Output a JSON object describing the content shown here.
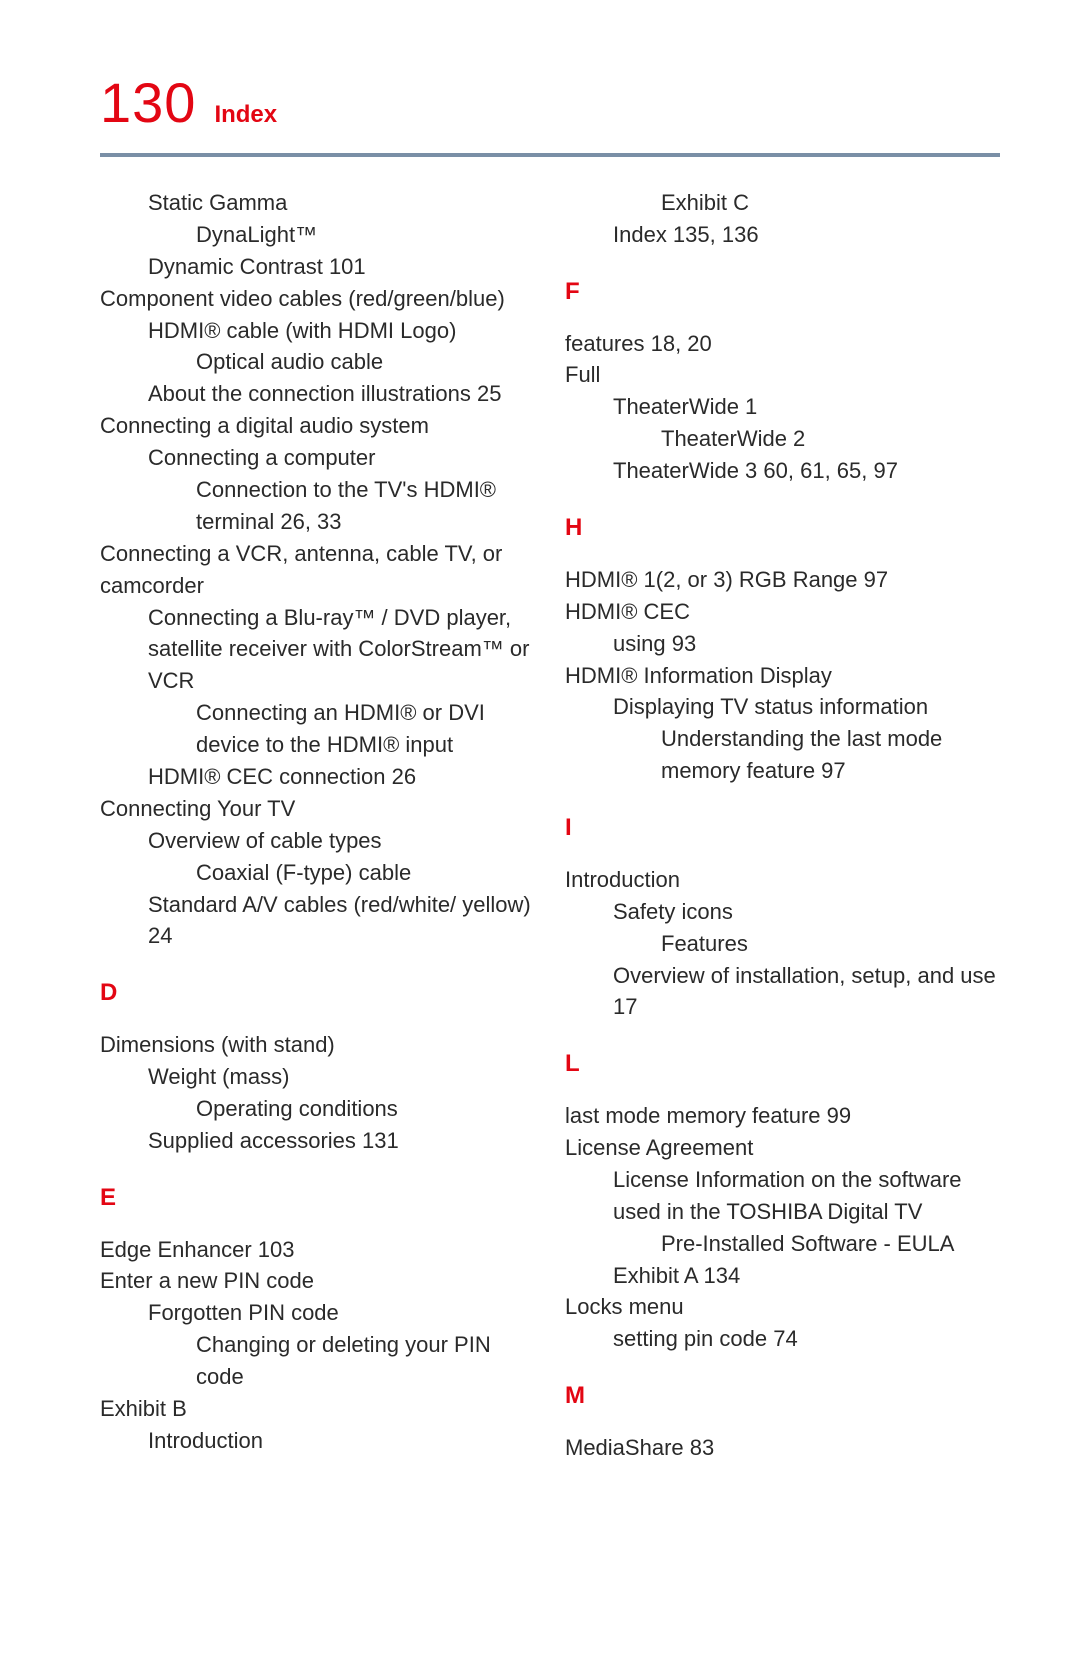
{
  "header": {
    "page_number": "130",
    "title": "Index"
  },
  "colors": {
    "accent": "#e30613",
    "rule": "#7a8fa6",
    "text": "#2a2a2a",
    "background": "#ffffff"
  },
  "left_column": {
    "pre_entries": [
      {
        "indent": 1,
        "text": "Static Gamma"
      },
      {
        "indent": 2,
        "text": "DynaLight™"
      },
      {
        "indent": 1,
        "text": "Dynamic Contrast  101"
      },
      {
        "indent": 0,
        "text": "Component video cables (red/green/blue)"
      },
      {
        "indent": 1,
        "text": "HDMI® cable (with HDMI Logo)"
      },
      {
        "indent": 2,
        "text": "Optical audio cable"
      },
      {
        "indent": 1,
        "text": "About the connection illustrations  25"
      },
      {
        "indent": 0,
        "text": "Connecting a digital audio system"
      },
      {
        "indent": 1,
        "text": "Connecting a computer"
      },
      {
        "indent": 2,
        "text": "Connection to the TV's HDMI® terminal  26, 33"
      },
      {
        "indent": 0,
        "text": "Connecting a VCR, antenna, cable TV, or camcorder"
      },
      {
        "indent": 1,
        "text": "Connecting a Blu-ray™ / DVD player, satellite receiver with ColorStream™ or VCR"
      },
      {
        "indent": 2,
        "text": "Connecting an HDMI® or DVI device to the HDMI® input"
      },
      {
        "indent": 1,
        "text": "HDMI® CEC connection  26"
      },
      {
        "indent": 0,
        "text": "Connecting Your TV"
      },
      {
        "indent": 1,
        "text": "Overview of cable types"
      },
      {
        "indent": 2,
        "text": "Coaxial (F-type) cable"
      },
      {
        "indent": 1,
        "text": "Standard A/V cables (red/white/ yellow)  24"
      }
    ],
    "sections": [
      {
        "letter": "D",
        "entries": [
          {
            "indent": 0,
            "text": "Dimensions (with stand)"
          },
          {
            "indent": 1,
            "text": "Weight (mass)"
          },
          {
            "indent": 2,
            "text": "Operating conditions"
          },
          {
            "indent": 1,
            "text": "Supplied accessories  131"
          }
        ]
      },
      {
        "letter": "E",
        "entries": [
          {
            "indent": 0,
            "text": "Edge Enhancer  103"
          },
          {
            "indent": 0,
            "text": "Enter a new PIN code"
          },
          {
            "indent": 1,
            "text": "Forgotten PIN code"
          },
          {
            "indent": 2,
            "text": "Changing or deleting your PIN code"
          },
          {
            "indent": 0,
            "text": "Exhibit B"
          },
          {
            "indent": 1,
            "text": "Introduction"
          }
        ]
      }
    ]
  },
  "right_column": {
    "pre_entries": [
      {
        "indent": 2,
        "text": "Exhibit C"
      },
      {
        "indent": 1,
        "text": "Index  135, 136"
      }
    ],
    "sections": [
      {
        "letter": "F",
        "entries": [
          {
            "indent": 0,
            "text": "features  18, 20"
          },
          {
            "indent": 0,
            "text": "Full"
          },
          {
            "indent": 1,
            "text": "TheaterWide 1"
          },
          {
            "indent": 2,
            "text": "TheaterWide 2"
          },
          {
            "indent": 1,
            "text": "TheaterWide 3  60, 61, 65, 97"
          }
        ]
      },
      {
        "letter": "H",
        "entries": [
          {
            "indent": 0,
            "text": "HDMI® 1(2, or 3) RGB Range  97"
          },
          {
            "indent": 0,
            "text": "HDMI® CEC"
          },
          {
            "indent": 1,
            "text": "using  93"
          },
          {
            "indent": 0,
            "text": "HDMI® Information Display"
          },
          {
            "indent": 1,
            "text": "Displaying TV status information"
          },
          {
            "indent": 2,
            "text": "Understanding the last mode memory feature  97"
          }
        ]
      },
      {
        "letter": "I",
        "entries": [
          {
            "indent": 0,
            "text": "Introduction"
          },
          {
            "indent": 1,
            "text": "Safety icons"
          },
          {
            "indent": 2,
            "text": "Features"
          },
          {
            "indent": 1,
            "text": "Overview of installation, setup, and use  17"
          }
        ]
      },
      {
        "letter": "L",
        "entries": [
          {
            "indent": 0,
            "text": "last mode memory feature  99"
          },
          {
            "indent": 0,
            "text": "License Agreement"
          },
          {
            "indent": 1,
            "text": "License Information on the software used in the TOSHIBA Digital TV"
          },
          {
            "indent": 2,
            "text": "Pre-Installed Software - EULA"
          },
          {
            "indent": 1,
            "text": "Exhibit A  134"
          },
          {
            "indent": 0,
            "text": "Locks menu"
          },
          {
            "indent": 1,
            "text": "setting pin code  74"
          }
        ]
      },
      {
        "letter": "M",
        "entries": [
          {
            "indent": 0,
            "text": "MediaShare  83"
          }
        ]
      }
    ]
  }
}
